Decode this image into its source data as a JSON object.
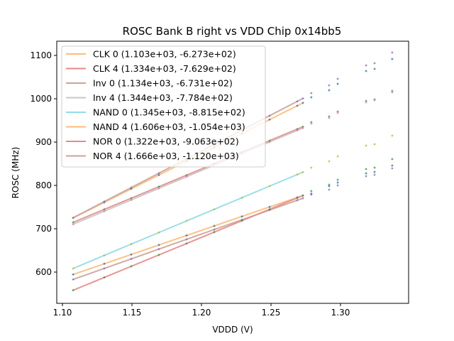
{
  "chart_data": {
    "type": "scatter",
    "title": "ROSC Bank B right vs VDD Chip 0x14bb5",
    "xlabel": "VDDD (V)",
    "ylabel": "ROSC (MHz)",
    "xlim": [
      1.096,
      1.349
    ],
    "ylim": [
      532,
      1133
    ],
    "xticks": [
      1.1,
      1.15,
      1.2,
      1.25,
      1.3
    ],
    "xtick_labels": [
      "1.10",
      "1.15",
      "1.20",
      "1.25",
      "1.30"
    ],
    "yticks": [
      600,
      700,
      800,
      900,
      1000,
      1100
    ],
    "ytick_labels": [
      "600",
      "700",
      "800",
      "900",
      "1000",
      "1100"
    ],
    "grid": false,
    "legend_position": "top-left",
    "fit_range": [
      1.1077,
      1.273
    ],
    "fits": [
      {
        "name": "CLK 0",
        "label": "CLK 0 (1.103e+03, -6.273e+02)",
        "slope": 1103,
        "intercept": -627.3,
        "color": "#ffbb78"
      },
      {
        "name": "CLK 4",
        "label": "CLK 4 (1.334e+03, -7.629e+02)",
        "slope": 1334,
        "intercept": -762.9,
        "color": "#e88a8a"
      },
      {
        "name": "Inv 0",
        "label": "Inv 0 (1.134e+03, -6.731e+02)",
        "slope": 1134,
        "intercept": -673.1,
        "color": "#c9a39b"
      },
      {
        "name": "Inv 4",
        "label": "Inv 4 (1.344e+03, -7.784e+02)",
        "slope": 1344,
        "intercept": -778.4,
        "color": "#c7c7c7"
      },
      {
        "name": "NAND 0",
        "label": "NAND 0 (1.345e+03, -8.815e+02)",
        "slope": 1345,
        "intercept": -881.5,
        "color": "#8fdde6"
      },
      {
        "name": "NAND 4",
        "label": "NAND 4 (1.606e+03, -1.054e+03)",
        "slope": 1606,
        "intercept": -1054,
        "color": "#ffbb78"
      },
      {
        "name": "NOR 0",
        "label": "NOR 0 (1.322e+03, -9.063e+02)",
        "slope": 1322,
        "intercept": -906.3,
        "color": "#e88a8a"
      },
      {
        "name": "NOR 4",
        "label": "NOR 4 (1.666e+03, -1.120e+03)",
        "slope": 1666,
        "intercept": -1120,
        "color": "#c9a39b"
      }
    ],
    "x": [
      1.1077,
      1.1199,
      1.1301,
      1.1398,
      1.1495,
      1.1597,
      1.1694,
      1.1796,
      1.1893,
      1.199,
      1.2092,
      1.2189,
      1.2291,
      1.2388,
      1.249,
      1.2587,
      1.2689,
      1.273,
      1.279,
      1.2918,
      1.298,
      1.3184,
      1.3245,
      1.3372
    ],
    "extra_points": [
      {
        "x": 1.279,
        "values": [
          1013,
          1003.3,
          945.9,
          942.6,
          841,
          786.9,
          781,
          778.7
        ],
        "colors": [
          "#9467bd",
          "#1f77b4",
          "#2ca02c",
          "#e377c2",
          "#bcbd22",
          "#2ca02c",
          "#1f77b4",
          "#9467bd"
        ]
      },
      {
        "x": 1.2918,
        "values": [
          1031,
          1019.7,
          959,
          955.7,
          855.7,
          801.6,
          798.4,
          790.2
        ],
        "colors": [
          "#9467bd",
          "#1f77b4",
          "#2ca02c",
          "#e377c2",
          "#bcbd22",
          "#2ca02c",
          "#1f77b4",
          "#9467bd"
        ]
      },
      {
        "x": 1.298,
        "values": [
          1045.9,
          1034.4,
          970.5,
          967.2,
          867.2,
          813.1,
          806.6,
          800
        ],
        "colors": [
          "#9467bd",
          "#1f77b4",
          "#2ca02c",
          "#e377c2",
          "#bcbd22",
          "#2ca02c",
          "#1f77b4",
          "#9467bd"
        ]
      },
      {
        "x": 1.3184,
        "values": [
          1077,
          1063.9,
          995,
          991.8,
          891.8,
          837.7,
          827.9,
          821.3
        ],
        "colors": [
          "#9467bd",
          "#1f77b4",
          "#2ca02c",
          "#e377c2",
          "#bcbd22",
          "#2ca02c",
          "#1f77b4",
          "#9467bd"
        ]
      },
      {
        "x": 1.3245,
        "values": [
          1082,
          1068.9,
          998.4,
          996.7,
          895,
          841,
          831.1,
          824.6
        ],
        "colors": [
          "#9467bd",
          "#1f77b4",
          "#2ca02c",
          "#e377c2",
          "#bcbd22",
          "#2ca02c",
          "#1f77b4",
          "#9467bd"
        ]
      },
      {
        "x": 1.3372,
        "values": [
          1106.6,
          1091.8,
          1018,
          1014.8,
          914.8,
          860.7,
          845.9,
          839.3
        ],
        "colors": [
          "#9467bd",
          "#1f77b4",
          "#2ca02c",
          "#e377c2",
          "#bcbd22",
          "#2ca02c",
          "#1f77b4",
          "#9467bd"
        ]
      }
    ],
    "fit_point_x": [
      1.1077,
      1.1199,
      1.1301,
      1.1398,
      1.1495,
      1.1597,
      1.1694,
      1.1796,
      1.1893,
      1.199,
      1.2092,
      1.2189,
      1.2291,
      1.2388,
      1.249,
      1.2587,
      1.2689,
      1.273
    ],
    "point_colors": {
      "CLK 0": "#1f77b4",
      "CLK 4": "#2ca02c",
      "Inv 0": "#9467bd",
      "Inv 4": "#e377c2",
      "NAND 0": "#bcbd22",
      "NAND 4": "#1f77b4",
      "NOR 0": "#2ca02c",
      "NOR 4": "#9467bd"
    }
  }
}
